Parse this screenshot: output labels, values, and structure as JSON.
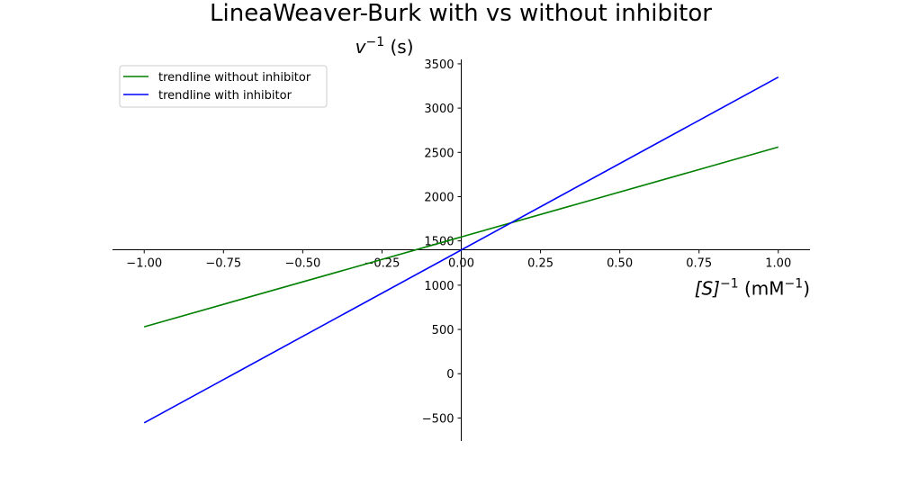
{
  "chart_data": {
    "type": "line",
    "title": "LineaWeaver-Burk with vs without inhibitor",
    "xlabel": {
      "base": "[S]",
      "exp": "−1",
      "unit_pre": " (mM",
      "unit_exp": "−1",
      "unit_post": ")"
    },
    "ylabel": {
      "base": "v",
      "exp": "−1",
      "unit": " (s)"
    },
    "xlim": [
      -1.1,
      1.1
    ],
    "ylim": [
      -760,
      3550
    ],
    "x_ticks": [
      -1.0,
      -0.75,
      -0.5,
      -0.25,
      0.0,
      0.25,
      0.5,
      0.75,
      1.0
    ],
    "x_tick_labels": [
      "−1.00",
      "−0.75",
      "−0.50",
      "−0.25",
      "0.00",
      "0.25",
      "0.50",
      "0.75",
      "1.00"
    ],
    "y_ticks": [
      -500,
      0,
      500,
      1000,
      1500,
      2000,
      2500,
      3000,
      3500
    ],
    "y_tick_labels": [
      "−500",
      "0",
      "500",
      "1000",
      "1500",
      "2000",
      "2500",
      "3000",
      "3500"
    ],
    "grid": false,
    "legend_position": "top-left",
    "series": [
      {
        "name": "trendline without inhibitor",
        "color": "#008000",
        "x": [
          -1.0,
          1.0
        ],
        "y": [
          530,
          2560
        ]
      },
      {
        "name": "trendline with inhibitor",
        "color": "#0000ff",
        "x": [
          -1.0,
          1.0
        ],
        "y": [
          -555,
          3350
        ]
      }
    ]
  }
}
